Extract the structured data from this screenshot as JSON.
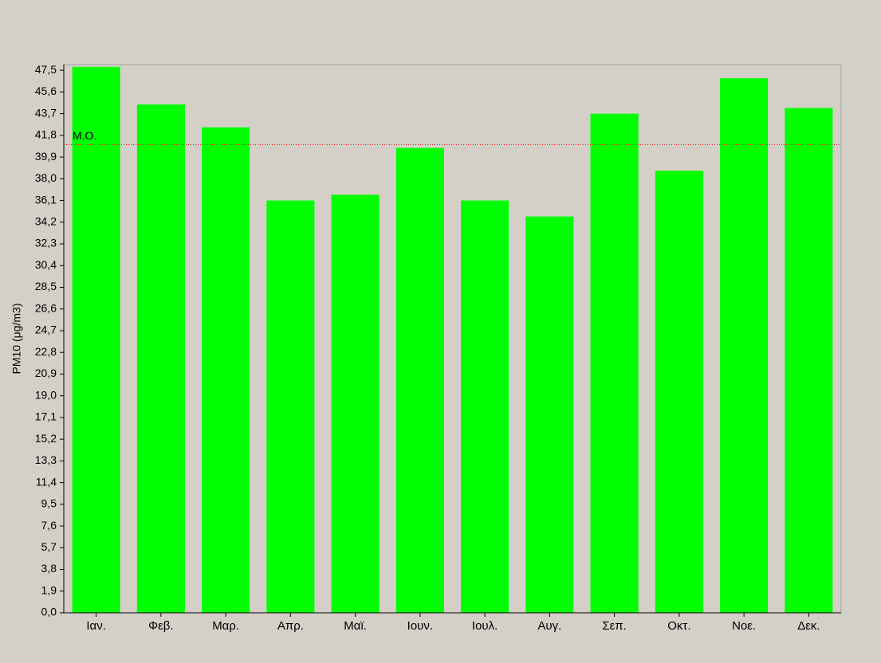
{
  "chart_data": {
    "type": "bar",
    "y_label": "PM10 (μg/m3)",
    "categories": [
      "Ιαν.",
      "Φεβ.",
      "Μαρ.",
      "Απρ.",
      "Μαϊ.",
      "Ιουν.",
      "Ιουλ.",
      "Αυγ.",
      "Σεπ.",
      "Οκτ.",
      "Νοε.",
      "Δεκ."
    ],
    "values": [
      47.8,
      44.5,
      42.5,
      36.1,
      36.6,
      40.7,
      36.1,
      34.7,
      43.7,
      38.7,
      46.8,
      44.2
    ],
    "color": "#00ff00",
    "mean_line": {
      "value": 41.0,
      "label": "Μ.Ο.",
      "color": "#ff0000"
    },
    "ylim": [
      0,
      48
    ],
    "yticks": [
      {
        "value": 0,
        "label": "0,0"
      },
      {
        "value": 1.9,
        "label": "1,9"
      },
      {
        "value": 3.8,
        "label": "3,8"
      },
      {
        "value": 5.7,
        "label": "5,7"
      },
      {
        "value": 7.6,
        "label": "7,6"
      },
      {
        "value": 9.5,
        "label": "9,5"
      },
      {
        "value": 11.4,
        "label": "11,4"
      },
      {
        "value": 13.3,
        "label": "13,3"
      },
      {
        "value": 15.2,
        "label": "15,2"
      },
      {
        "value": 17.1,
        "label": "17,1"
      },
      {
        "value": 19,
        "label": "19,0"
      },
      {
        "value": 20.9,
        "label": "20,9"
      },
      {
        "value": 22.8,
        "label": "22,8"
      },
      {
        "value": 24.7,
        "label": "24,7"
      },
      {
        "value": 26.6,
        "label": "26,6"
      },
      {
        "value": 28.5,
        "label": "28,5"
      },
      {
        "value": 30.4,
        "label": "30,4"
      },
      {
        "value": 32.3,
        "label": "32,3"
      },
      {
        "value": 34.2,
        "label": "34,2"
      },
      {
        "value": 36.1,
        "label": "36,1"
      },
      {
        "value": 38,
        "label": "38,0"
      },
      {
        "value": 39.9,
        "label": "39,9"
      },
      {
        "value": 41.8,
        "label": "41,8"
      },
      {
        "value": 43.7,
        "label": "43,7"
      },
      {
        "value": 45.6,
        "label": "45,6"
      },
      {
        "value": 47.5,
        "label": "47,5"
      }
    ]
  }
}
